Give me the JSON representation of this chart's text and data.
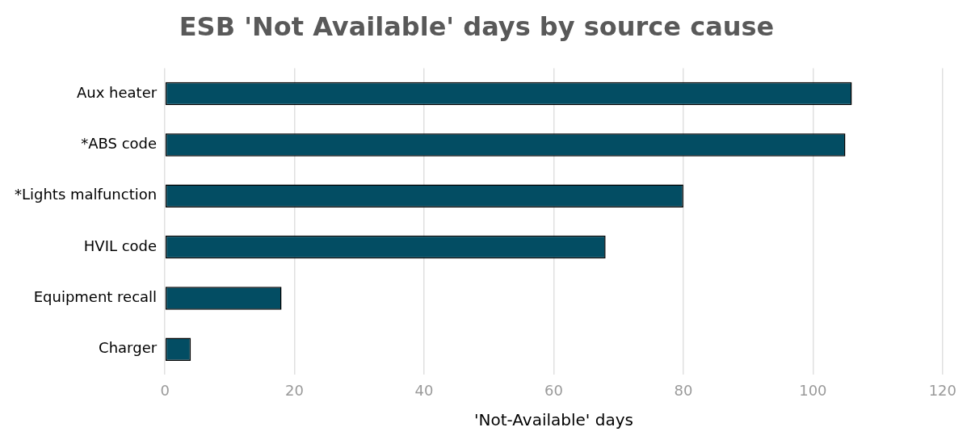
{
  "chart_data": {
    "type": "bar",
    "title": "ESB 'Not Available' days by source cause",
    "orientation": "horizontal",
    "xlabel": "'Not-Available' days",
    "categories": [
      "Aux heater",
      "*ABS code",
      "*Lights malfunction",
      "HVIL code",
      "Equipment recall",
      "Charger"
    ],
    "values": [
      106,
      105,
      80,
      68,
      18,
      4
    ],
    "color": "#034d63",
    "xlim": [
      0,
      120
    ],
    "xticks": [
      0,
      20,
      40,
      60,
      80,
      100,
      120
    ],
    "grid": "x",
    "legend": false
  }
}
